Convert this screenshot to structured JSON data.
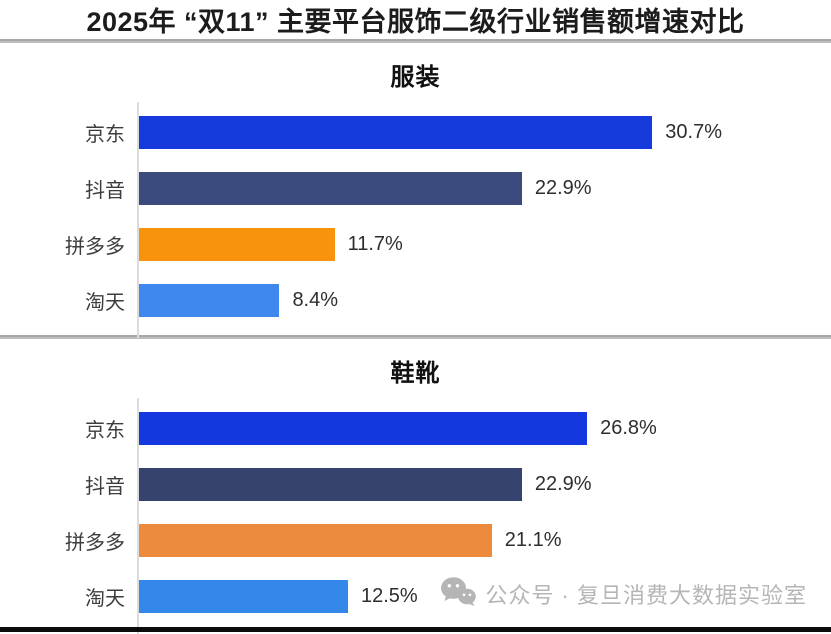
{
  "header": {
    "title_prefix": "2025年 “双11” 主要平台",
    "title_bold": "服饰二级行业",
    "title_suffix": "销售额增速对比"
  },
  "watermark": {
    "icon": "wechat-icon",
    "text": "公众号 · 复旦消费大数据实验室",
    "color": "#b5b5b5"
  },
  "chart_data": [
    {
      "type": "bar",
      "orientation": "horizontal",
      "title": "服装",
      "categories": [
        "京东",
        "抖音",
        "拼多多",
        "淘天"
      ],
      "values": [
        30.7,
        22.9,
        11.7,
        8.4
      ],
      "value_labels": [
        "30.7%",
        "22.9%",
        "11.7%",
        "8.4%"
      ],
      "bar_colors": [
        "#1639DC",
        "#3A4A7D",
        "#F8930E",
        "#3D87ED"
      ],
      "xlim": [
        0,
        39
      ],
      "grid": false,
      "value_label_position": "end-of-bar"
    },
    {
      "type": "bar",
      "orientation": "horizontal",
      "title": "鞋靴",
      "categories": [
        "京东",
        "抖音",
        "拼多多",
        "淘天"
      ],
      "values": [
        26.8,
        22.9,
        21.1,
        12.5
      ],
      "value_labels": [
        "26.8%",
        "22.9%",
        "21.1%",
        "12.5%"
      ],
      "bar_colors": [
        "#1537E0",
        "#36436E",
        "#EC8B3D",
        "#3488EA"
      ],
      "xlim": [
        0,
        39
      ],
      "grid": false,
      "value_label_position": "end-of-bar"
    }
  ]
}
